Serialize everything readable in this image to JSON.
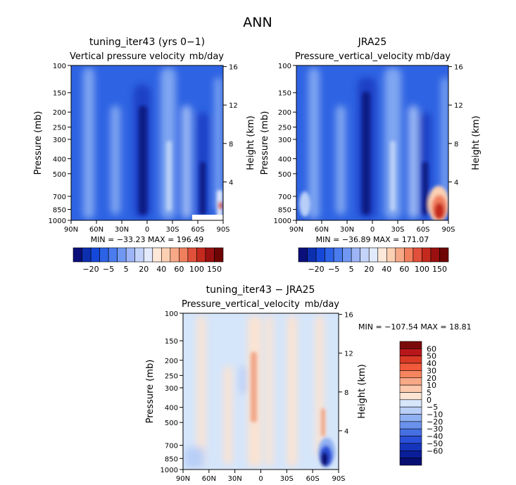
{
  "chart_data": {
    "type": "heatmap",
    "title": "ANN",
    "panels": [
      {
        "id": "model",
        "title": "tuning_iter43 (yrs 0−1)",
        "subtitle_left": "Vertical pressure velocity",
        "subtitle_right": "mb/day",
        "xlabel": "",
        "ylabel": "Pressure (mb)",
        "ylabel_right": "Height (km)",
        "x_ticks": [
          "90N",
          "60N",
          "30N",
          "0",
          "30S",
          "60S",
          "90S"
        ],
        "y_ticks": [
          "100",
          "150",
          "200",
          "250",
          "300",
          "400",
          "500",
          "700",
          "850",
          "1000"
        ],
        "y_right_ticks": [
          "16",
          "12",
          "8",
          "4"
        ],
        "stats": "MIN = −33.23   MAX = 196.49",
        "colorbar_labels": [
          "−20",
          "−5",
          "5",
          "20",
          "40",
          "60",
          "100",
          "150"
        ]
      },
      {
        "id": "obs",
        "title": "JRA25",
        "subtitle_left": "Pressure_vertical_velocity",
        "subtitle_right": "mb/day",
        "xlabel": "",
        "ylabel": "Pressure (mb)",
        "ylabel_right": "Height (km)",
        "x_ticks": [
          "90N",
          "60N",
          "30N",
          "0",
          "30S",
          "60S",
          "90S"
        ],
        "y_ticks": [
          "100",
          "150",
          "200",
          "250",
          "300",
          "400",
          "500",
          "700",
          "850",
          "1000"
        ],
        "y_right_ticks": [
          "16",
          "12",
          "8",
          "4"
        ],
        "stats": "MIN = −36.89   MAX = 171.07",
        "colorbar_labels": [
          "−20",
          "−5",
          "5",
          "20",
          "40",
          "60",
          "100",
          "150"
        ]
      },
      {
        "id": "diff",
        "title": "tuning_iter43 − JRA25",
        "subtitle_left": "Pressure_vertical_velocity",
        "subtitle_right": "mb/day",
        "xlabel": "",
        "ylabel": "Pressure (mb)",
        "ylabel_right": "Height (km)",
        "x_ticks": [
          "90N",
          "60N",
          "30N",
          "0",
          "30S",
          "60S",
          "90S"
        ],
        "y_ticks": [
          "100",
          "150",
          "200",
          "250",
          "300",
          "400",
          "500",
          "700",
          "850",
          "1000"
        ],
        "y_right_ticks": [
          "16",
          "12",
          "8",
          "4"
        ],
        "stats": "MIN = −107.54   MAX =  18.81",
        "colorbar_labels": [
          "60",
          "50",
          "40",
          "30",
          "20",
          "10",
          "5",
          "0",
          "−5",
          "−10",
          "−20",
          "−30",
          "−40",
          "−50",
          "−60"
        ]
      }
    ],
    "colorbar_top_colors": [
      "#0b0f7a",
      "#0c2fb0",
      "#1547d8",
      "#2b62e6",
      "#4a7cee",
      "#7097f2",
      "#9db5f6",
      "#c4d3fa",
      "#e2eafd",
      "#fde8d9",
      "#fcd0b3",
      "#f7a886",
      "#f07f5e",
      "#e0503a",
      "#c42a1e",
      "#9a1010",
      "#6e0505"
    ],
    "colorbar_diff_colors": [
      "#7a0a0a",
      "#b8161a",
      "#d93a26",
      "#f05a3a",
      "#f5855f",
      "#f8a987",
      "#fcc9ac",
      "#fde5d4",
      "#d8e6fb",
      "#b9cff7",
      "#8fb0f2",
      "#6a92ec",
      "#466fe4",
      "#2a4fd8",
      "#1535bd",
      "#0b1e9a",
      "#070f72"
    ],
    "colors": {
      "bg_blue": "#2e63e3",
      "light_blue": "#7fa6f1",
      "pale_blue": "#aec6f6",
      "deep_blue": "#1a3fc4",
      "navy": "#0b1a86",
      "diff_bg": "#d5e5fa",
      "diff_peach": "#fbe3d2",
      "diff_salmon": "#f2a88a"
    }
  }
}
